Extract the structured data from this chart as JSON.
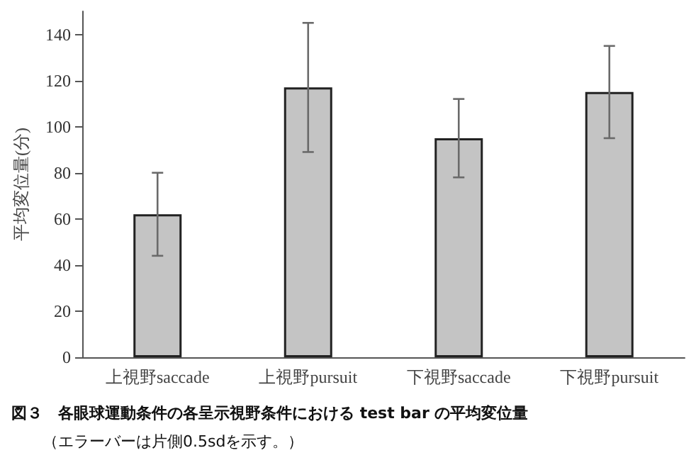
{
  "chart_data": {
    "type": "bar",
    "ylabel": "平均変位量(分)",
    "categories": [
      "上視野saccade",
      "上視野pursuit",
      "下視野saccade",
      "下視野pursuit"
    ],
    "values": [
      62,
      117,
      95,
      115
    ],
    "errors": [
      18,
      28,
      17,
      20
    ],
    "color": "#c4c4c4",
    "ylim": [
      0,
      150
    ],
    "yticks": [
      0,
      20,
      40,
      60,
      80,
      100,
      120,
      140
    ],
    "grid": false,
    "annotations": [
      "図３　各眼球運動条件の各呈示視野条件における test bar の平均変位量",
      "（エラーバーは片側0.5sdを示す。）"
    ]
  }
}
